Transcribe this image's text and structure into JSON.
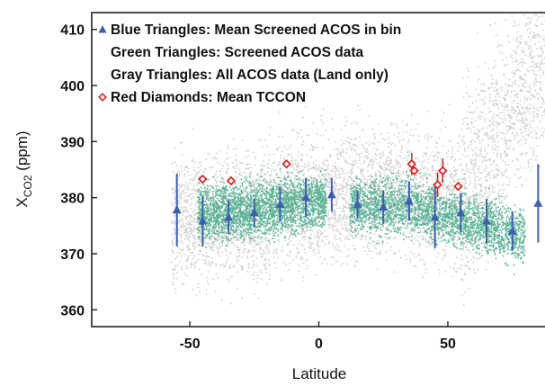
{
  "chart_data": {
    "type": "scatter",
    "title": "",
    "xlabel": "Latitude",
    "ylabel": {
      "main": "X",
      "sub": "CO2",
      "unit": " (ppm)"
    },
    "xlim": [
      -88,
      88
    ],
    "ylim": [
      357,
      413
    ],
    "xticks": [
      -50,
      0,
      50
    ],
    "yticks": [
      360,
      370,
      380,
      390,
      400,
      410
    ],
    "legend_placement": "top-left",
    "legend": [
      {
        "label": "Blue Triangles: Mean Screened ACOS in bin",
        "marker": "triangle",
        "color": "#3f5fae",
        "show_marker": true
      },
      {
        "label": "Green Triangles: Screened ACOS data",
        "marker": "triangle",
        "color": "#3fa886",
        "show_marker": false
      },
      {
        "label": "Gray Triangles: All ACOS data (Land only)",
        "marker": "triangle",
        "color": "#c8c8c8",
        "show_marker": false
      },
      {
        "label": "Red Diamonds: Mean TCCON",
        "marker": "diamond",
        "color": "#d42a2a",
        "show_marker": true
      }
    ],
    "colors": {
      "blue": "#3f5fae",
      "green": "#3fa886",
      "gray": "#cfcfcf",
      "red": "#d42a2a"
    },
    "series": [
      {
        "name": "Blue Triangles: Mean Screened ACOS in bin",
        "marker": "triangle",
        "x": [
          -55,
          -45,
          -35,
          -25,
          -15,
          -5,
          5,
          15,
          25,
          35,
          45,
          55,
          65,
          75,
          85
        ],
        "y": [
          377.8,
          375.8,
          376.5,
          377.3,
          378.8,
          380.0,
          380.5,
          378.8,
          378.3,
          379.4,
          376.5,
          377.3,
          375.8,
          374.0,
          379.0
        ],
        "err": [
          6.5,
          4.5,
          3.0,
          2.5,
          3.0,
          3.5,
          3.0,
          2.5,
          3.0,
          3.5,
          5.5,
          3.5,
          4.0,
          3.5,
          7.0
        ]
      },
      {
        "name": "Red Diamonds: Mean TCCON",
        "marker": "diamond",
        "x": [
          -45,
          -34,
          -12.5,
          36,
          37,
          46,
          48,
          54
        ],
        "y": [
          383.3,
          383.0,
          386.0,
          386.0,
          384.8,
          382.3,
          384.8,
          382.0
        ],
        "err": [
          0,
          0,
          0,
          2.0,
          0,
          2.2,
          2.2,
          0
        ]
      },
      {
        "name": "Green Triangles: Screened ACOS data",
        "marker": "triangle",
        "description": "dense cloud, latitude -47 to 80, roughly 370-383 ppm"
      },
      {
        "name": "Gray Triangles: All ACOS data (Land only)",
        "marker": "triangle",
        "description": "wider cloud, latitude -57 to 88, roughly 362-410 ppm"
      }
    ]
  }
}
